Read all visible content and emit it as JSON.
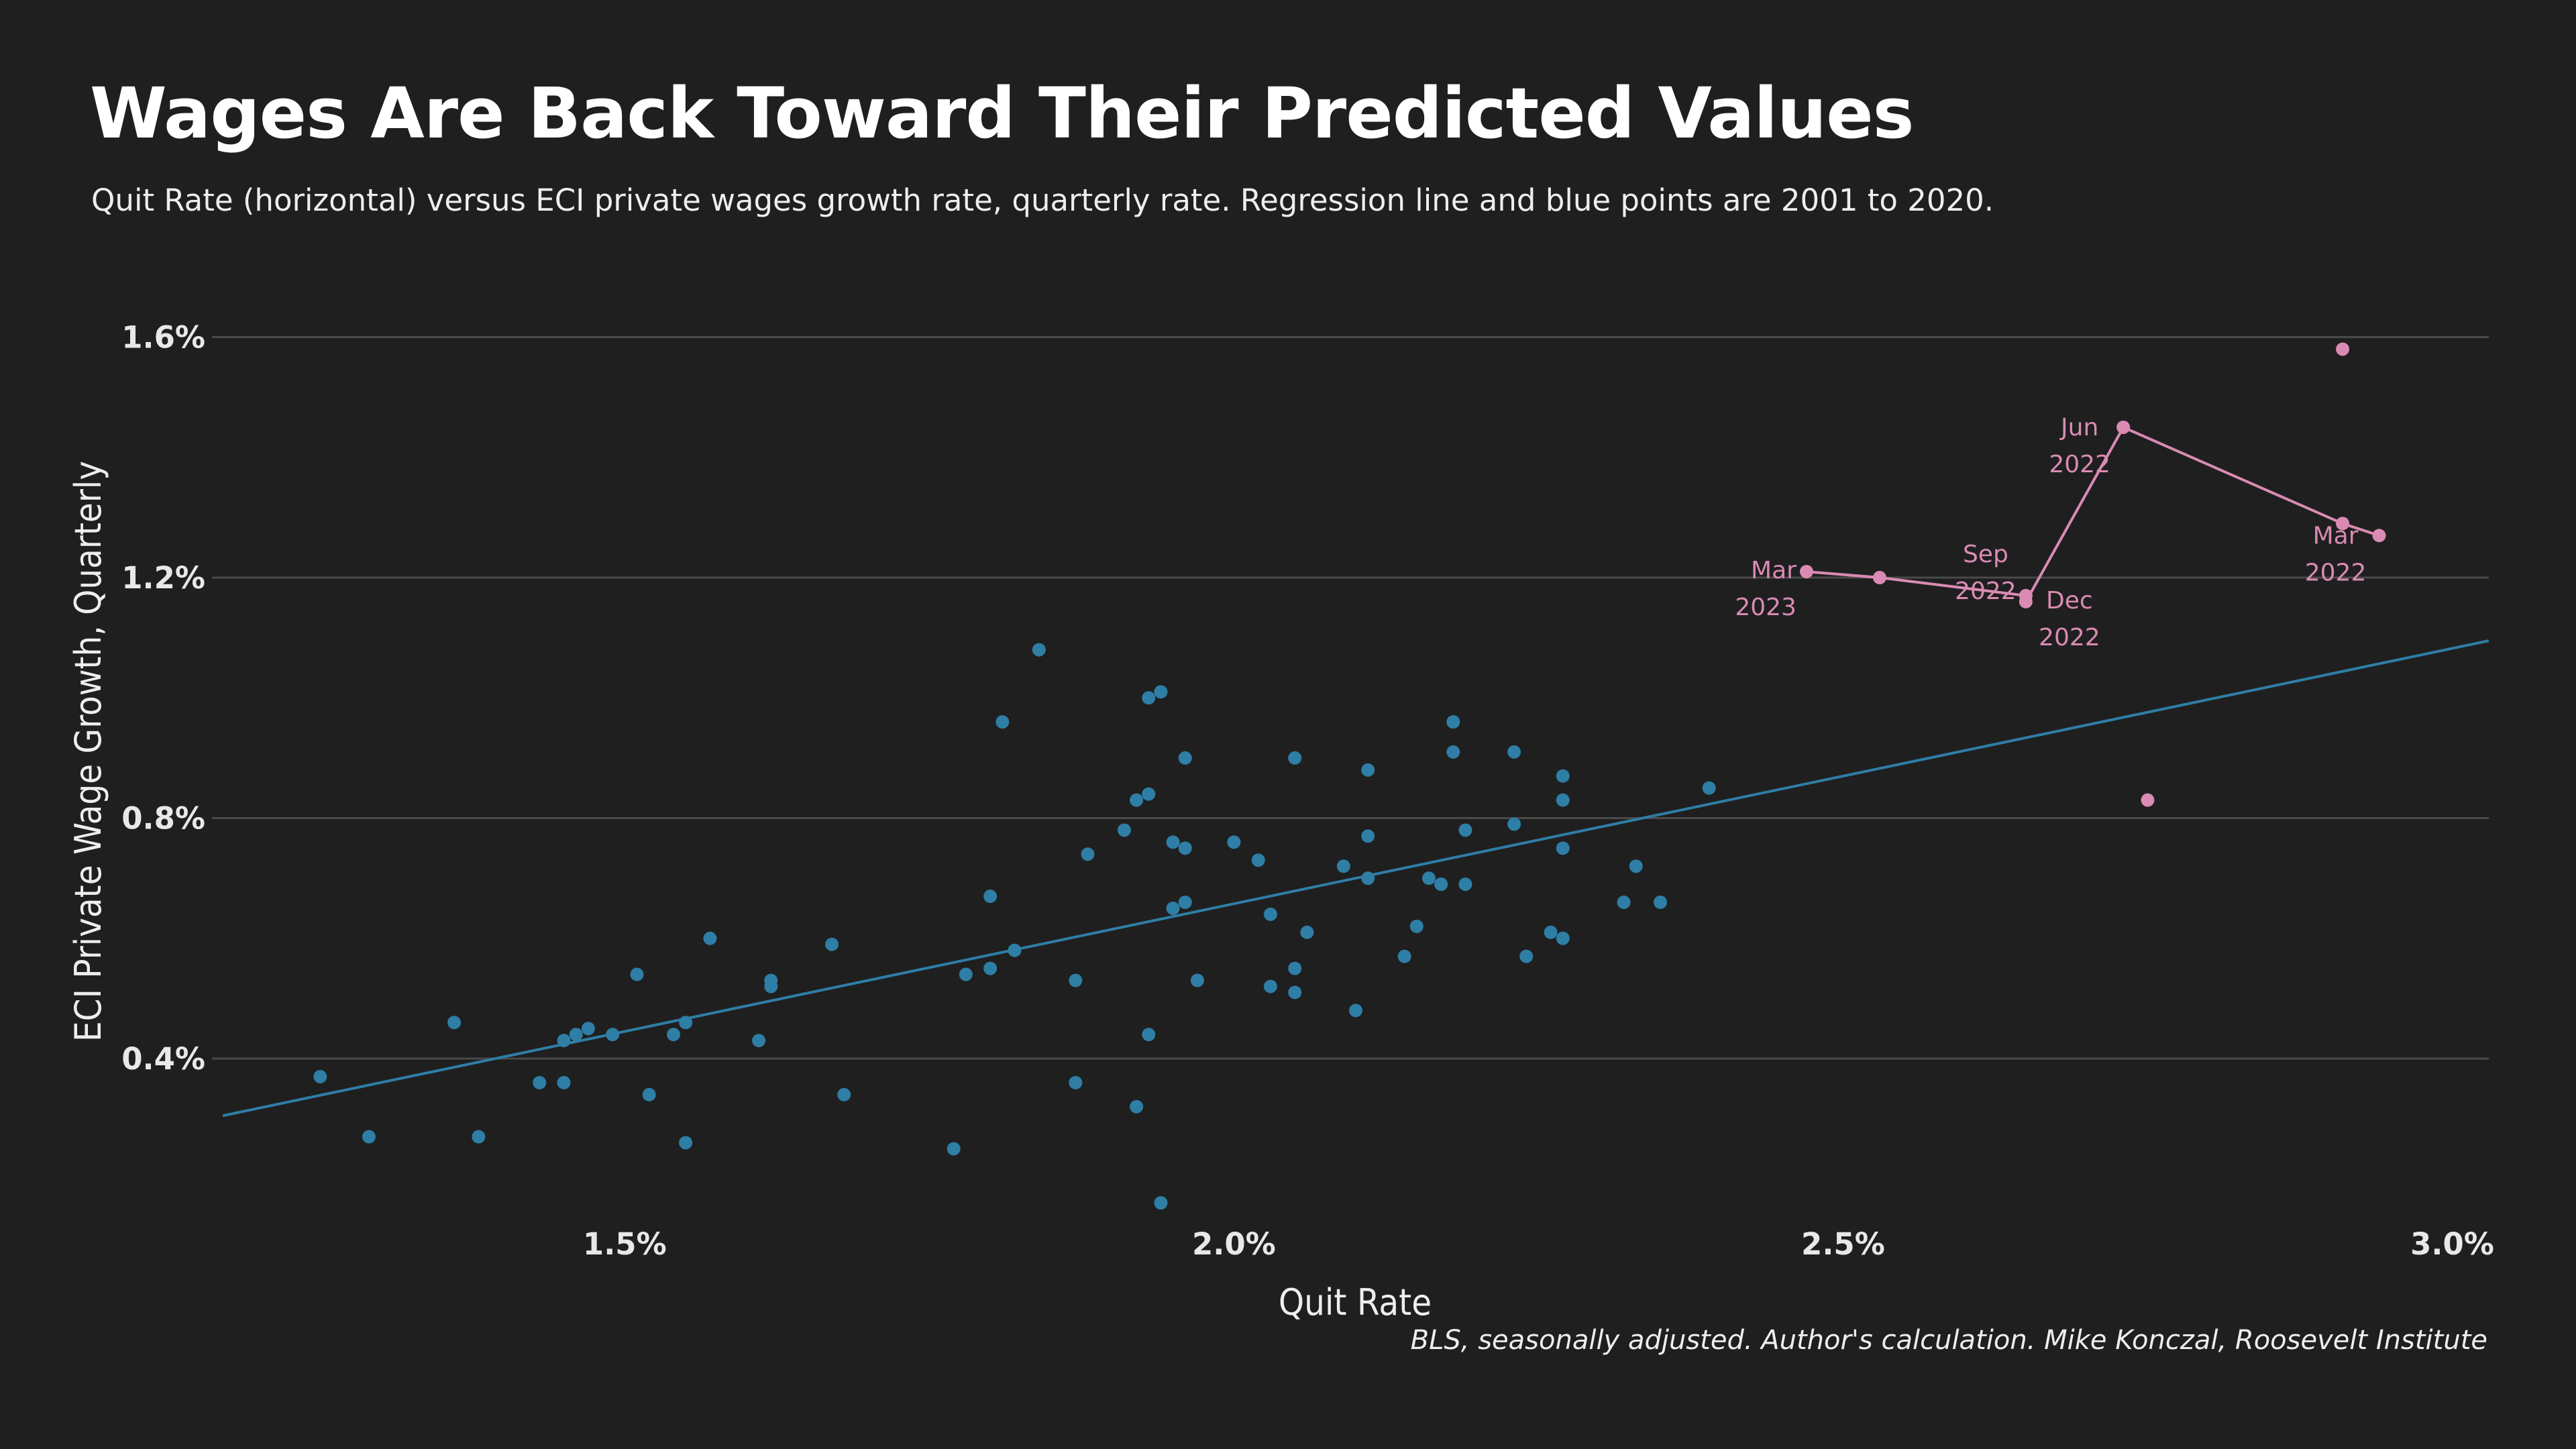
{
  "chart_data": {
    "type": "scatter",
    "title": "Wages Are Back Toward Their Predicted Values",
    "subtitle": "Quit Rate (horizontal) versus ECI private wages growth rate, quarterly rate. Regression line and blue points are 2001 to 2020.",
    "xlabel": "Quit Rate",
    "ylabel": "ECI Private Wage Growth, Quarterly",
    "xlim": [
      1.17,
      3.03
    ],
    "ylim": [
      0.13,
      1.72
    ],
    "x_ticks": [
      1.5,
      2.0,
      2.5,
      3.0
    ],
    "x_tick_labels": [
      "1.5%",
      "2.0%",
      "2.5%",
      "3.0%"
    ],
    "y_ticks": [
      0.4,
      0.8,
      1.2,
      1.6
    ],
    "y_tick_labels": [
      "0.4%",
      "0.8%",
      "1.2%",
      "1.6%"
    ],
    "grid": "horizontal",
    "source": "BLS, seasonally adjusted. Author's calculation. Mike Konczal, Roosevelt Institute",
    "colors": {
      "background": "#1f1f1f",
      "historical": "#2e7ea6",
      "recent": "#d98bb3",
      "grid": "#4a4a4a"
    },
    "regression_line": {
      "x": [
        1.17,
        3.03
      ],
      "y": [
        0.305,
        1.095
      ]
    },
    "series": [
      {
        "role": "historical",
        "points": [
          [
            1.25,
            0.37
          ],
          [
            1.29,
            0.27
          ],
          [
            1.36,
            0.46
          ],
          [
            1.38,
            0.27
          ],
          [
            1.43,
            0.36
          ],
          [
            1.45,
            0.43
          ],
          [
            1.45,
            0.36
          ],
          [
            1.46,
            0.44
          ],
          [
            1.47,
            0.45
          ],
          [
            1.49,
            0.44
          ],
          [
            1.51,
            0.54
          ],
          [
            1.52,
            0.34
          ],
          [
            1.54,
            0.44
          ],
          [
            1.55,
            0.46
          ],
          [
            1.55,
            0.26
          ],
          [
            1.57,
            0.6
          ],
          [
            1.61,
            0.43
          ],
          [
            1.62,
            0.52
          ],
          [
            1.62,
            0.53
          ],
          [
            1.67,
            0.59
          ],
          [
            1.68,
            0.34
          ],
          [
            1.77,
            0.25
          ],
          [
            1.78,
            0.54
          ],
          [
            1.8,
            0.55
          ],
          [
            1.8,
            0.67
          ],
          [
            1.81,
            0.96
          ],
          [
            1.82,
            0.58
          ],
          [
            1.84,
            1.08
          ],
          [
            1.87,
            0.36
          ],
          [
            1.87,
            0.53
          ],
          [
            1.88,
            0.74
          ],
          [
            1.91,
            0.78
          ],
          [
            1.92,
            0.83
          ],
          [
            1.92,
            0.32
          ],
          [
            1.93,
            0.84
          ],
          [
            1.93,
            1.0
          ],
          [
            1.93,
            0.44
          ],
          [
            1.94,
            1.01
          ],
          [
            1.94,
            0.16
          ],
          [
            1.95,
            0.76
          ],
          [
            1.95,
            0.65
          ],
          [
            1.96,
            0.9
          ],
          [
            1.96,
            0.66
          ],
          [
            1.96,
            0.75
          ],
          [
            1.97,
            0.53
          ],
          [
            2.0,
            0.76
          ],
          [
            2.02,
            0.73
          ],
          [
            2.03,
            0.64
          ],
          [
            2.03,
            0.52
          ],
          [
            2.05,
            0.9
          ],
          [
            2.05,
            0.55
          ],
          [
            2.05,
            0.51
          ],
          [
            2.06,
            0.61
          ],
          [
            2.09,
            0.72
          ],
          [
            2.1,
            0.48
          ],
          [
            2.11,
            0.77
          ],
          [
            2.11,
            0.7
          ],
          [
            2.11,
            0.88
          ],
          [
            2.14,
            0.57
          ],
          [
            2.15,
            0.62
          ],
          [
            2.16,
            0.7
          ],
          [
            2.17,
            0.69
          ],
          [
            2.17,
            0.69
          ],
          [
            2.18,
            0.96
          ],
          [
            2.18,
            0.91
          ],
          [
            2.19,
            0.78
          ],
          [
            2.19,
            0.69
          ],
          [
            2.23,
            0.79
          ],
          [
            2.23,
            0.91
          ],
          [
            2.24,
            0.57
          ],
          [
            2.26,
            0.61
          ],
          [
            2.27,
            0.6
          ],
          [
            2.27,
            0.87
          ],
          [
            2.27,
            0.83
          ],
          [
            2.27,
            0.75
          ],
          [
            2.32,
            0.66
          ],
          [
            2.33,
            0.72
          ],
          [
            2.35,
            0.66
          ],
          [
            2.39,
            0.85
          ]
        ]
      },
      {
        "role": "recent",
        "path": [
          [
            2.47,
            1.21
          ],
          [
            2.53,
            1.2
          ],
          [
            2.65,
            1.17
          ],
          [
            2.65,
            1.16
          ],
          [
            2.73,
            1.45
          ],
          [
            2.91,
            1.29
          ],
          [
            2.94,
            1.27
          ]
        ],
        "extra_points": [
          [
            2.75,
            0.83
          ],
          [
            2.91,
            1.58
          ]
        ],
        "labels": [
          {
            "line1": "Mar",
            "line2": "2023"
          },
          {
            "line1": "Sep",
            "line2": "2022"
          },
          {
            "line1": "Dec",
            "line2": "2022"
          },
          {
            "line1": "Jun",
            "line2": "2022"
          },
          {
            "line1": "Mar",
            "line2": "2022"
          }
        ]
      }
    ]
  }
}
